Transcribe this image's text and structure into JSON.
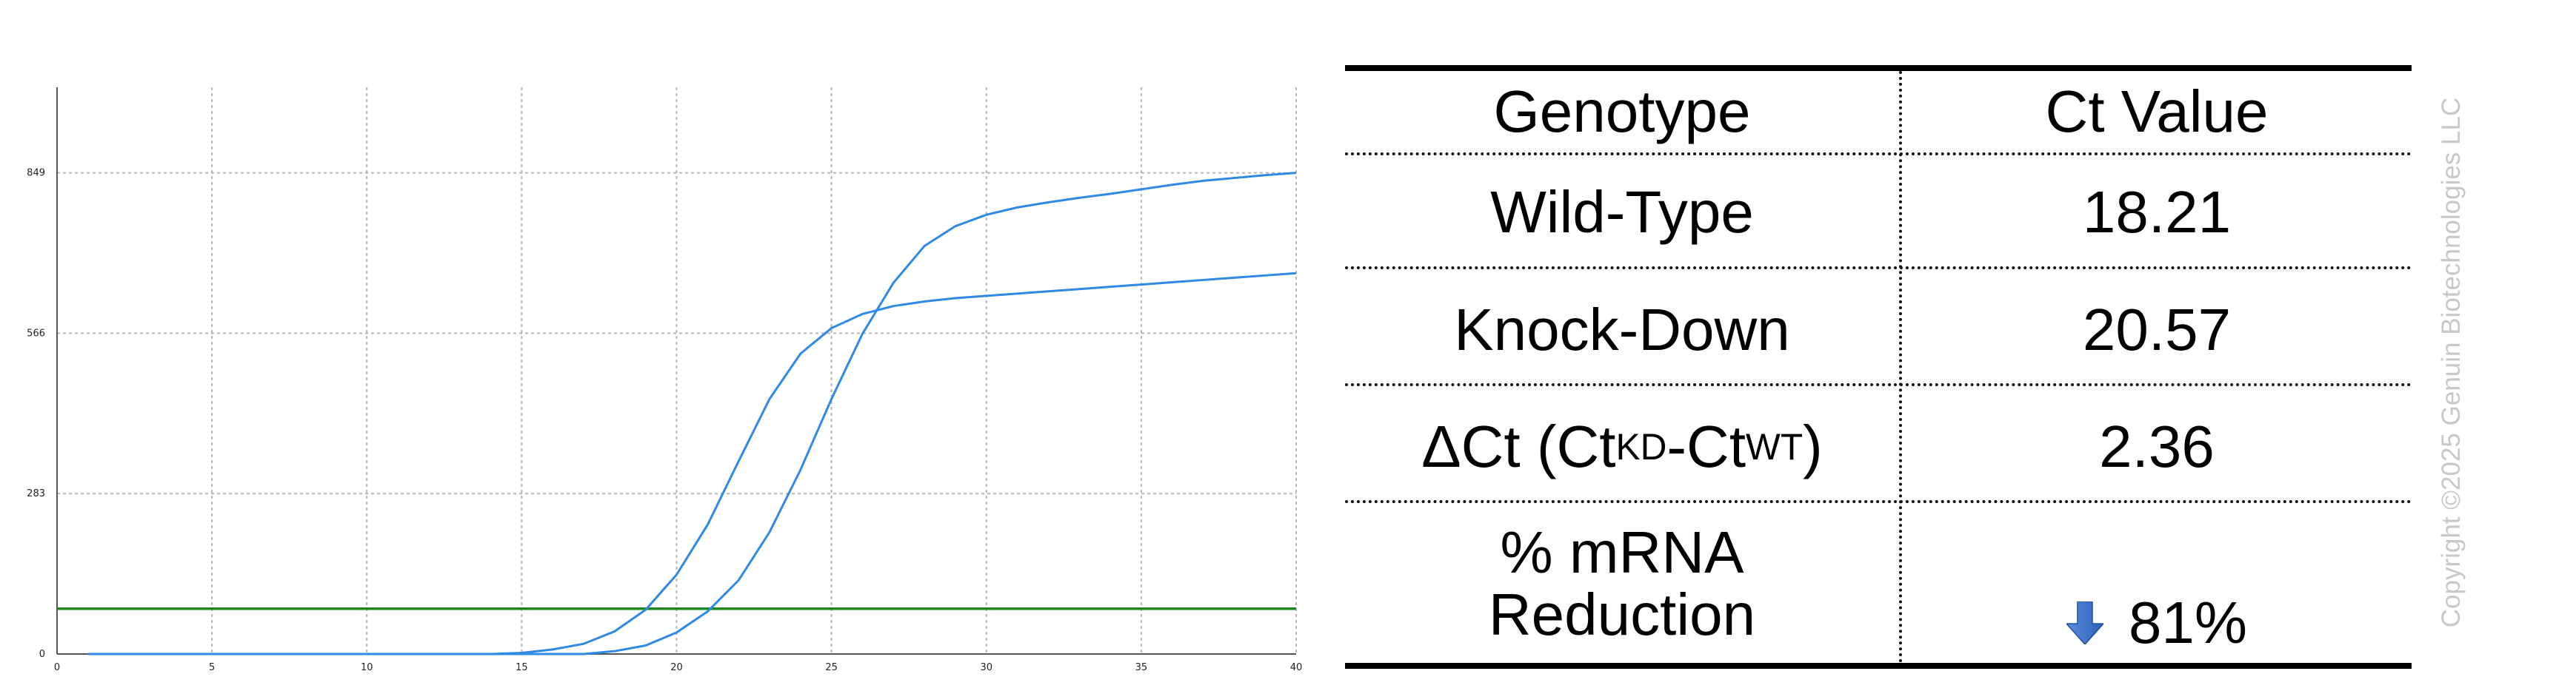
{
  "chart_data": {
    "type": "line",
    "xlim": [
      0,
      40
    ],
    "ylim": [
      0,
      1000
    ],
    "x_ticks": [
      0,
      5,
      10,
      15,
      20,
      25,
      30,
      35,
      40
    ],
    "y_ticks": [
      0,
      283,
      566,
      849
    ],
    "grid": true,
    "colors": {
      "series": "#2f8ae6",
      "threshold": "#1a8a1a",
      "grid": "#b5b5b5"
    },
    "threshold": 80,
    "x": [
      1,
      2,
      3,
      4,
      5,
      6,
      7,
      8,
      9,
      10,
      11,
      12,
      13,
      14,
      15,
      16,
      17,
      18,
      19,
      20,
      21,
      22,
      23,
      24,
      25,
      26,
      27,
      28,
      29,
      30,
      31,
      32,
      33,
      34,
      35,
      36,
      37,
      38,
      39,
      40
    ],
    "series": [
      {
        "values": [
          0,
          0,
          0,
          0,
          0,
          0,
          0,
          0,
          0,
          0,
          0,
          0,
          0,
          0,
          2,
          8,
          18,
          40,
          78,
          140,
          228,
          340,
          450,
          530,
          575,
          600,
          614,
          622,
          628,
          632,
          636,
          640,
          644,
          648,
          652,
          656,
          660,
          664,
          668,
          672
        ]
      },
      {
        "values": [
          0,
          0,
          0,
          0,
          0,
          0,
          0,
          0,
          0,
          0,
          0,
          0,
          0,
          0,
          0,
          0,
          0,
          5,
          15,
          38,
          75,
          130,
          215,
          325,
          450,
          565,
          655,
          720,
          755,
          775,
          788,
          797,
          805,
          812,
          820,
          828,
          835,
          840,
          845,
          849
        ]
      }
    ]
  },
  "table": {
    "header": {
      "genotype": "Genotype",
      "ct_value": "Ct Value"
    },
    "rows": [
      {
        "label": "Wild-Type",
        "value": "18.21"
      },
      {
        "label": "Knock-Down",
        "value": "20.57"
      },
      {
        "label_prefix": "ΔCt (Ct",
        "label_sub1": "KD",
        "label_mid": "-Ct",
        "label_sub2": "WT",
        "label_suffix": ")",
        "value": "2.36"
      },
      {
        "label_line1": "% mRNA",
        "label_line2": "Reduction",
        "value": "81%",
        "icon": "down-arrow-icon",
        "icon_color": "#3a6ec8"
      }
    ]
  },
  "copyright": "Copyright ©2025 Genuin Biotechnologies LLC"
}
